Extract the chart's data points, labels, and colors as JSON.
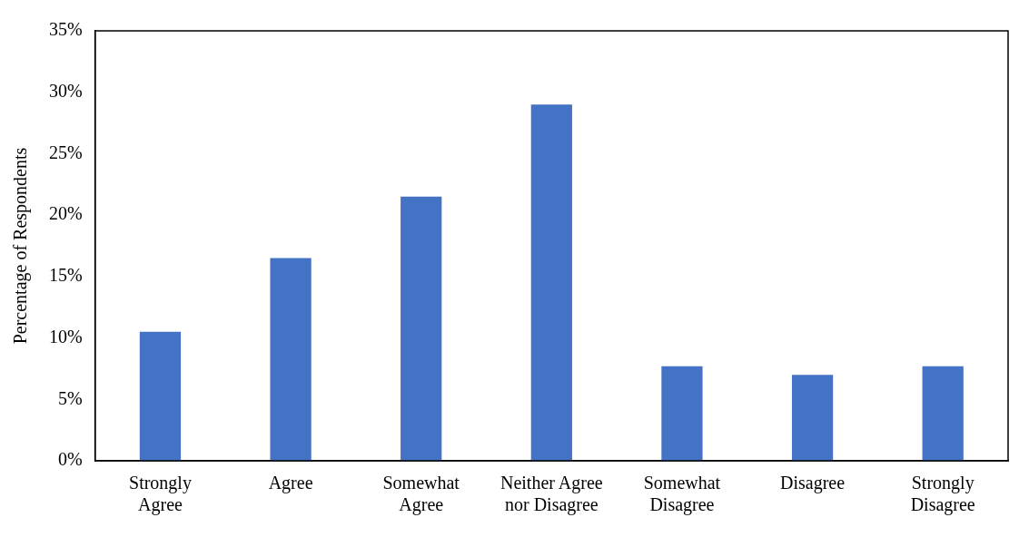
{
  "chart_data": {
    "type": "bar",
    "ylabel": "Percentage of Respondents",
    "categories": [
      "Strongly Agree",
      "Agree",
      "Somewhat Agree",
      "Neither Agree nor Disagree",
      "Somewhat Disagree",
      "Disagree",
      "Strongly Disagree"
    ],
    "values": [
      10.5,
      16.5,
      21.5,
      29.0,
      7.7,
      7.0,
      7.7
    ],
    "color": "#4472c4",
    "ylim": [
      0,
      35
    ],
    "yticks": [
      {
        "value": 0,
        "label": "0%"
      },
      {
        "value": 5,
        "label": "5%"
      },
      {
        "value": 10,
        "label": "10%"
      },
      {
        "value": 15,
        "label": "15%"
      },
      {
        "value": 20,
        "label": "20%"
      },
      {
        "value": 25,
        "label": "25%"
      },
      {
        "value": 30,
        "label": "30%"
      },
      {
        "value": 35,
        "label": "35%"
      }
    ],
    "grid": false
  }
}
